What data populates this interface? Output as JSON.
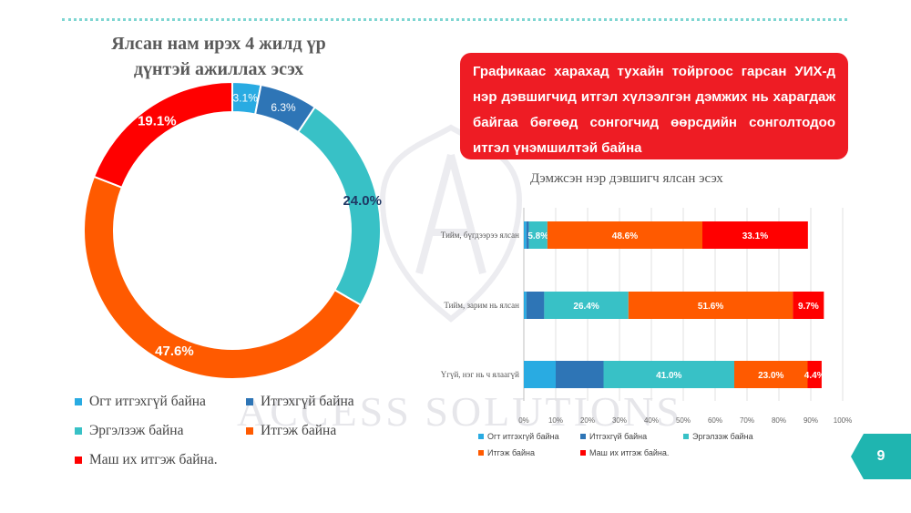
{
  "watermark": {
    "text": "ACCESS SOLUTIONS"
  },
  "page_number": "9",
  "callout": {
    "text": "Графикаас харахад тухайн тойргоос гарсан УИХ-д нэр дэвшигчид итгэл хүлээлгэн дэмжих нь харагдаж байгаа бөгөөд сонгогчид өөрсдийн сонголтодоо итгэл үнэмшилтэй байна"
  },
  "colors": {
    "very_distrust": "#29abe2",
    "distrust": "#2e75b6",
    "hesitant": "#38c1c6",
    "trust": "#ff5a00",
    "strong_trust": "#ff0000",
    "accent_red": "#ee1c24",
    "teal": "#1fb5b0"
  },
  "chart_data": [
    {
      "type": "pie",
      "title_line1": "Ялсан нам ирэх 4 жилд үр",
      "title_line2": "дүнтэй ажиллах эсэх",
      "labels": [
        "Огт итгэхгүй байна",
        "Итгэхгүй байна",
        "Эргэлзэж байна",
        "Итгэж байна",
        "Маш их итгэж байна."
      ],
      "values": [
        3.1,
        6.3,
        24.0,
        47.6,
        19.1
      ],
      "value_labels": [
        "3.1%",
        "6.3%",
        "24.0%",
        "47.6%",
        "19.1%"
      ],
      "colors": [
        "#29abe2",
        "#2e75b6",
        "#38c1c6",
        "#ff5a00",
        "#ff0000"
      ],
      "legend_position": "bottom"
    },
    {
      "type": "bar",
      "orientation": "horizontal",
      "stacked": true,
      "title": "Дэмжсэн нэр дэвшигч ялсан эсэх",
      "categories": [
        "Тийм, бүгдээрээ ялсан",
        "Тийм, зарим нь ялсан",
        "Үгүй, нэг нь ч ялаагүй"
      ],
      "series": [
        {
          "name": "Огт итгэхгүй байна",
          "color": "#29abe2",
          "values": [
            0.8,
            0.8,
            10.0
          ],
          "labels": [
            "",
            "",
            ""
          ]
        },
        {
          "name": "Итгэхгүй байна",
          "color": "#2e75b6",
          "values": [
            0.8,
            5.6,
            15.0
          ],
          "labels": [
            "",
            "",
            ""
          ]
        },
        {
          "name": "Эргэлзэж байна",
          "color": "#38c1c6",
          "values": [
            5.8,
            26.4,
            41.0
          ],
          "labels": [
            "5.8%",
            "26.4%",
            "41.0%"
          ]
        },
        {
          "name": "Итгэж байна",
          "color": "#ff5a00",
          "values": [
            48.6,
            51.6,
            23.0
          ],
          "labels": [
            "48.6%",
            "51.6%",
            "23.0%"
          ]
        },
        {
          "name": "Маш их итгэж байна.",
          "color": "#ff0000",
          "values": [
            33.1,
            9.7,
            4.4
          ],
          "labels": [
            "33.1%",
            "9.7%",
            "4.4%"
          ]
        }
      ],
      "x_ticks": [
        "0%",
        "10%",
        "20%",
        "30%",
        "40%",
        "50%",
        "60%",
        "70%",
        "80%",
        "90%",
        "100%"
      ],
      "xlim": [
        0,
        100
      ],
      "grid": true,
      "legend_position": "bottom"
    }
  ]
}
